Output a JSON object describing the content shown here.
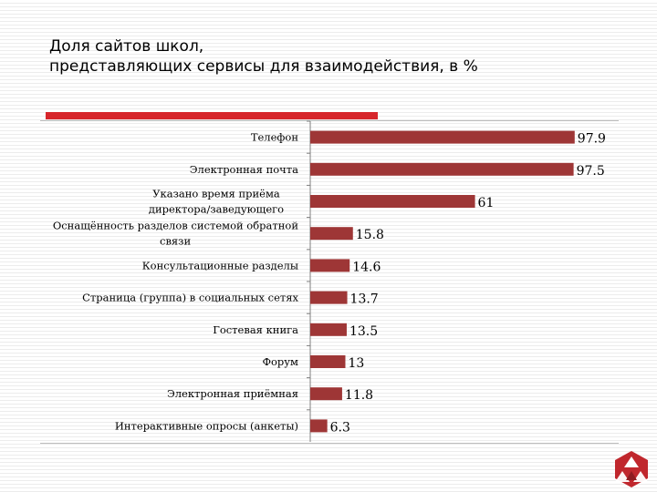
{
  "colors": {
    "bar": "#9e3636",
    "accent": "#d7262b",
    "axis": "#7f7f7f"
  },
  "title": "Доля сайтов школ,\nпредставляющих сервисы для взаимодействия, в %",
  "chart_data": {
    "type": "bar",
    "orientation": "horizontal",
    "title": "Доля сайтов школ,\nпредставляющих сервисы для взаимодействия, в %",
    "xlim": [
      0,
      100
    ],
    "grid": false,
    "categories": [
      "Телефон",
      "Электронная почта",
      "Указано время приёма\nдиректора/заведующего",
      "Оснащённость разделов системой обратной\nсвязи",
      "Консультационные разделы",
      "Страница (группа) в социальных сетях",
      "Гостевая книга",
      "Форум",
      "Электронная приёмная",
      "Интерактивные опросы (анкеты)"
    ],
    "values": [
      97.9,
      97.5,
      61,
      15.8,
      14.6,
      13.7,
      13.5,
      13,
      11.8,
      6.3
    ],
    "value_labels": [
      "97.9",
      "97.5",
      "61",
      "15.8",
      "14.6",
      "13.7",
      "13.5",
      "13",
      "11.8",
      "6.3"
    ]
  },
  "logo": {
    "icon": "hexagon-triangles-icon"
  }
}
